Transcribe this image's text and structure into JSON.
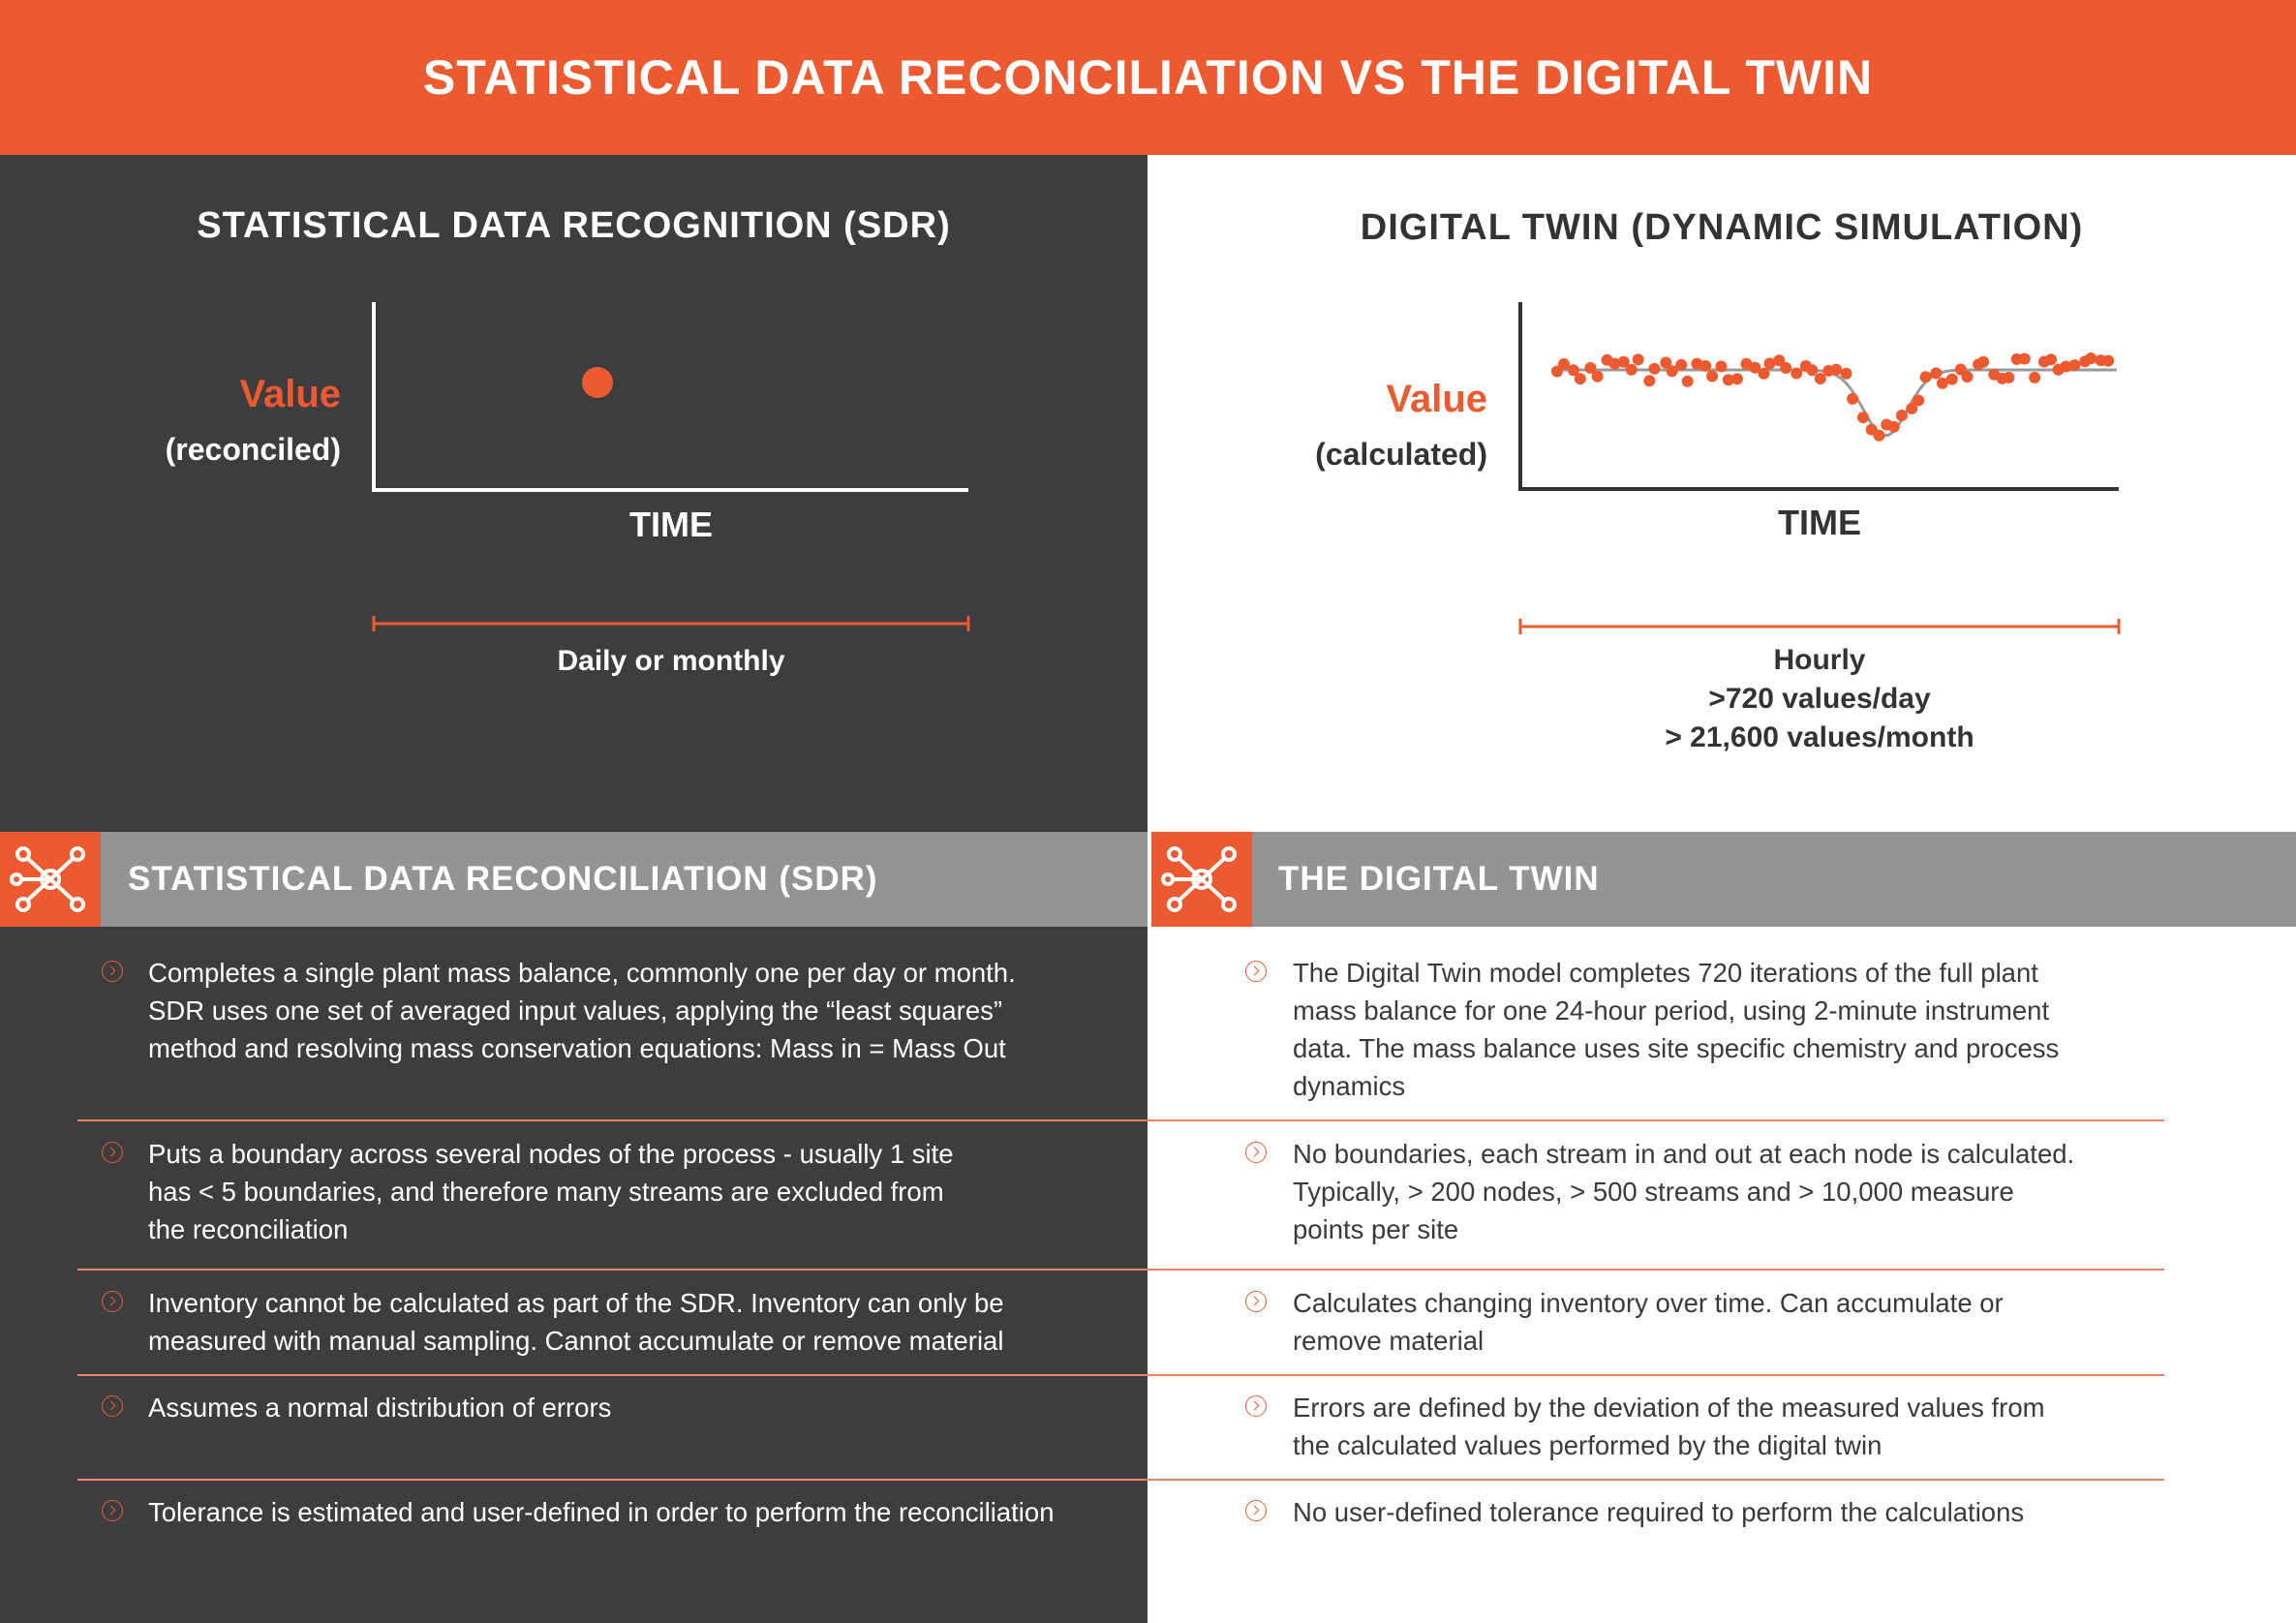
{
  "header": {
    "title": "STATISTICAL DATA RECONCILIATION VS THE DIGITAL TWIN"
  },
  "sdr_panel": {
    "title": "STATISTICAL DATA RECOGNITION (SDR)",
    "value_label": "Value",
    "value_sublabel": "(reconciled)",
    "time_label": "TIME",
    "range_label": "Daily or monthly"
  },
  "dt_panel": {
    "title": "DIGITAL TWIN (DYNAMIC SIMULATION)",
    "value_label": "Value",
    "value_sublabel": "(calculated)",
    "time_label": "TIME",
    "range_lines": [
      "Hourly",
      ">720 values/day",
      "> 21,600 values/month"
    ]
  },
  "sdr_section": {
    "title": "STATISTICAL DATA RECONCILIATION (SDR)",
    "icon": "network-icon",
    "items": [
      {
        "lines": [
          "Completes a single plant mass balance, commonly one per day or month.",
          "SDR uses one set of averaged input values, applying the “least squares”",
          "method and resolving mass conservation equations: Mass in = Mass Out"
        ]
      },
      {
        "lines": [
          "Puts a boundary across several nodes of the process - usually 1 site",
          "has < 5 boundaries, and therefore many streams are excluded from",
          "the reconciliation"
        ]
      },
      {
        "lines": [
          "Inventory cannot be calculated as part of the SDR. Inventory can only be",
          "measured with manual sampling. Cannot accumulate or remove material"
        ]
      },
      {
        "lines": [
          "Assumes a normal distribution of errors"
        ]
      },
      {
        "lines": [
          "Tolerance is estimated and user-defined in order to perform the reconciliation"
        ]
      }
    ]
  },
  "dt_section": {
    "title": "THE DIGITAL TWIN",
    "icon": "network-icon",
    "items": [
      {
        "lines": [
          "The Digital Twin model completes 720 iterations of the full plant",
          "mass balance for one 24-hour period, using 2-minute instrument",
          "data. The mass balance uses site specific chemistry and process",
          "dynamics"
        ]
      },
      {
        "lines": [
          "No boundaries, each stream in and out at each node is calculated.",
          "Typically, > 200 nodes, > 500 streams and > 10,000 measure",
          "points per site"
        ]
      },
      {
        "lines": [
          "Calculates changing inventory over time. Can accumulate or",
          "remove material"
        ]
      },
      {
        "lines": [
          "Errors are defined by the deviation of the measured values from",
          "the calculated values performed by the digital twin"
        ]
      },
      {
        "lines": [
          "No user-defined tolerance required to perform the calculations"
        ]
      }
    ]
  },
  "colors": {
    "accent": "#ee5a2f",
    "dark": "#3d3d3f",
    "gray_bar": "#949494",
    "line_gray": "#9a9a9a"
  }
}
